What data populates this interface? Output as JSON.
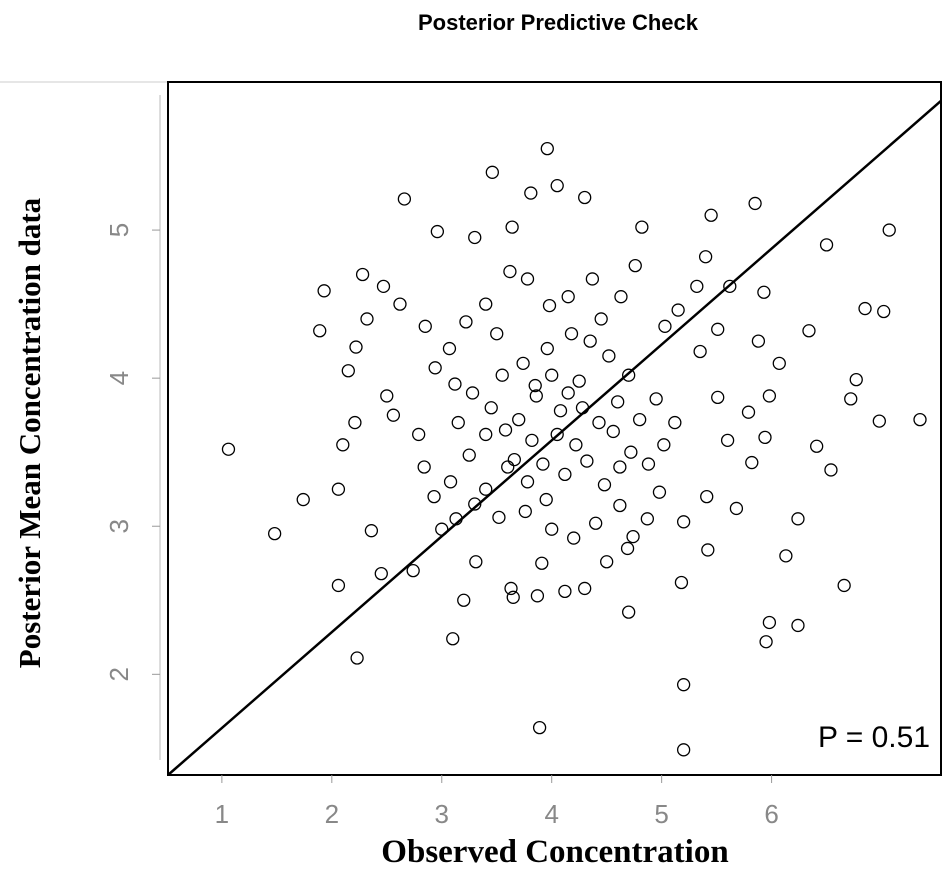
{
  "chart_data": {
    "type": "scatter",
    "title": "Posterior Predictive Check",
    "x_label": "Observed Concentration",
    "y_label": "Posterior Mean Concentration data",
    "annotation": "P = 0.51",
    "xlim": [
      0.51,
      7.55
    ],
    "ylim": [
      1.32,
      6.0
    ],
    "xticks": [
      1,
      2,
      3,
      4,
      5,
      6
    ],
    "yticks": [
      2,
      3,
      4,
      5
    ],
    "color": "#000000",
    "x": [
      1.06,
      1.48,
      1.74,
      2.23,
      3.89,
      5.2,
      5.2,
      3.96,
      3.46,
      7.07,
      7.35,
      6.98,
      6.66,
      2.66,
      5.85,
      5.45,
      3.81,
      4.05,
      4.3,
      2.96,
      3.3,
      3.64,
      4.82,
      5.4,
      6.5,
      7.02,
      6.85,
      6.34,
      6.77,
      6.72,
      6.41,
      6.54,
      6.24,
      6.13,
      6.24,
      5.95,
      5.98,
      4.7,
      4.3,
      3.1,
      2.06,
      2.45,
      2.74,
      2.36,
      2.06,
      2.1,
      2.21,
      2.15,
      2.22,
      1.89,
      1.93,
      2.28,
      2.47,
      2.62,
      2.85,
      2.32,
      2.5,
      2.56,
      2.79,
      2.84,
      2.93,
      3.0,
      3.13,
      3.31,
      3.2,
      3.63,
      3.65,
      3.87,
      4.12,
      3.91,
      4.5,
      4.69,
      4.74,
      5.18,
      5.42,
      5.2,
      4.87,
      4.98,
      5.41,
      5.68,
      5.82,
      5.6,
      5.94,
      5.79,
      5.51,
      5.98,
      6.07,
      5.88,
      5.51,
      5.35,
      5.15,
      5.03,
      5.32,
      5.62,
      5.93,
      4.76,
      4.63,
      4.37,
      4.15,
      3.98,
      3.78,
      3.62,
      3.4,
      3.22,
      3.07,
      2.94,
      3.12,
      3.28,
      3.45,
      3.58,
      3.7,
      3.86,
      4.0,
      4.15,
      4.28,
      4.43,
      4.56,
      4.72,
      4.88,
      5.02,
      5.12,
      4.95,
      4.7,
      4.52,
      4.35,
      4.18,
      3.96,
      3.74,
      3.55,
      3.4,
      3.25,
      3.08,
      3.4,
      3.6,
      3.78,
      3.95,
      4.12,
      4.32,
      4.48,
      4.62,
      4.4,
      4.2,
      4.0,
      3.76,
      3.52,
      3.3,
      3.82,
      4.05,
      4.22,
      4.6,
      4.8,
      3.66,
      3.92,
      4.08,
      3.5,
      4.45,
      3.85,
      4.25,
      4.62,
      3.15
    ],
    "values": [
      3.52,
      2.95,
      3.18,
      2.11,
      1.64,
      1.49,
      1.93,
      5.55,
      5.39,
      5.0,
      3.72,
      3.71,
      2.6,
      5.21,
      5.18,
      5.1,
      5.25,
      5.3,
      5.22,
      4.99,
      4.95,
      5.02,
      5.02,
      4.82,
      4.9,
      4.45,
      4.47,
      4.32,
      3.99,
      3.86,
      3.54,
      3.38,
      3.05,
      2.8,
      2.33,
      2.22,
      2.35,
      2.42,
      2.58,
      2.24,
      2.6,
      2.68,
      2.7,
      2.97,
      3.25,
      3.55,
      3.7,
      4.05,
      4.21,
      4.32,
      4.59,
      4.7,
      4.62,
      4.5,
      4.35,
      4.4,
      3.88,
      3.75,
      3.62,
      3.4,
      3.2,
      2.98,
      3.05,
      2.76,
      2.5,
      2.58,
      2.52,
      2.53,
      2.56,
      2.75,
      2.76,
      2.85,
      2.93,
      2.62,
      2.84,
      3.03,
      3.05,
      3.23,
      3.2,
      3.12,
      3.43,
      3.58,
      3.6,
      3.77,
      3.87,
      3.88,
      4.1,
      4.25,
      4.33,
      4.18,
      4.46,
      4.35,
      4.62,
      4.62,
      4.58,
      4.76,
      4.55,
      4.67,
      4.55,
      4.49,
      4.67,
      4.72,
      4.5,
      4.38,
      4.2,
      4.07,
      3.96,
      3.9,
      3.8,
      3.65,
      3.72,
      3.88,
      4.02,
      3.9,
      3.8,
      3.7,
      3.64,
      3.5,
      3.42,
      3.55,
      3.7,
      3.86,
      4.02,
      4.15,
      4.25,
      4.3,
      4.2,
      4.1,
      4.02,
      3.62,
      3.48,
      3.3,
      3.25,
      3.4,
      3.3,
      3.18,
      3.35,
      3.44,
      3.28,
      3.14,
      3.02,
      2.92,
      2.98,
      3.1,
      3.06,
      3.15,
      3.58,
      3.62,
      3.55,
      3.84,
      3.72,
      3.45,
      3.42,
      3.78,
      4.3,
      4.4,
      3.95,
      3.98,
      3.4,
      3.7
    ]
  }
}
